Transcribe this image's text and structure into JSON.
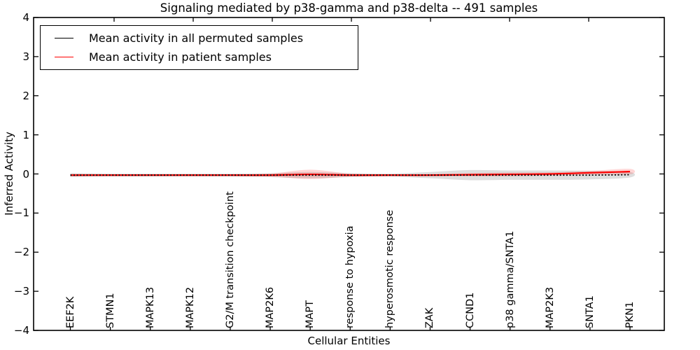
{
  "title": "Signaling mediated by p38-gamma and p38-delta -- 491 samples",
  "legend": {
    "items": [
      {
        "label": "Mean activity in all permuted samples",
        "color": "#000000"
      },
      {
        "label": "Mean activity in patient samples",
        "color": "#ff0000"
      }
    ]
  },
  "chart_data": {
    "type": "line",
    "title": "Signaling mediated by p38-gamma and p38-delta -- 491 samples",
    "xlabel": "Cellular Entities",
    "ylabel": "Inferred Activity",
    "ylim": [
      -4,
      4
    ],
    "y_ticks": [
      4,
      3,
      2,
      1,
      0,
      -1,
      -2,
      -3,
      -4
    ],
    "grid": false,
    "legend_position": "upper left",
    "categories": [
      "EEF2K",
      "STMN1",
      "MAPK13",
      "MAPK12",
      "G2/M transition checkpoint",
      "MAP2K6",
      "MAPT",
      "response to hypoxia",
      "hyperosmotic response",
      "ZAK",
      "CCND1",
      "p38 gamma/SNTA1",
      "MAP2K3",
      "SNTA1",
      "PKN1"
    ],
    "series": [
      {
        "name": "Mean activity in all permuted samples",
        "color": "#000000",
        "line_style": "dotted",
        "band_color": "rgba(0,0,0,0.13)",
        "values": [
          -0.03,
          -0.03,
          -0.03,
          -0.03,
          -0.03,
          -0.03,
          -0.03,
          -0.03,
          -0.03,
          -0.03,
          -0.03,
          -0.03,
          -0.03,
          -0.03,
          -0.02
        ],
        "band_halfwidth": [
          0.05,
          0.04,
          0.04,
          0.04,
          0.04,
          0.05,
          0.08,
          0.05,
          0.04,
          0.08,
          0.13,
          0.12,
          0.12,
          0.11,
          0.07
        ]
      },
      {
        "name": "Mean activity in patient samples",
        "color": "#ff0000",
        "line_style": "solid",
        "band_color": "rgba(255,0,0,0.16)",
        "values": [
          -0.03,
          -0.03,
          -0.03,
          -0.03,
          -0.03,
          -0.03,
          -0.01,
          -0.03,
          -0.03,
          -0.03,
          -0.02,
          -0.01,
          0.0,
          0.03,
          0.06
        ],
        "band_halfwidth": [
          0.03,
          0.02,
          0.02,
          0.02,
          0.02,
          0.04,
          0.12,
          0.04,
          0.02,
          0.03,
          0.04,
          0.05,
          0.04,
          0.05,
          0.07
        ]
      }
    ]
  }
}
